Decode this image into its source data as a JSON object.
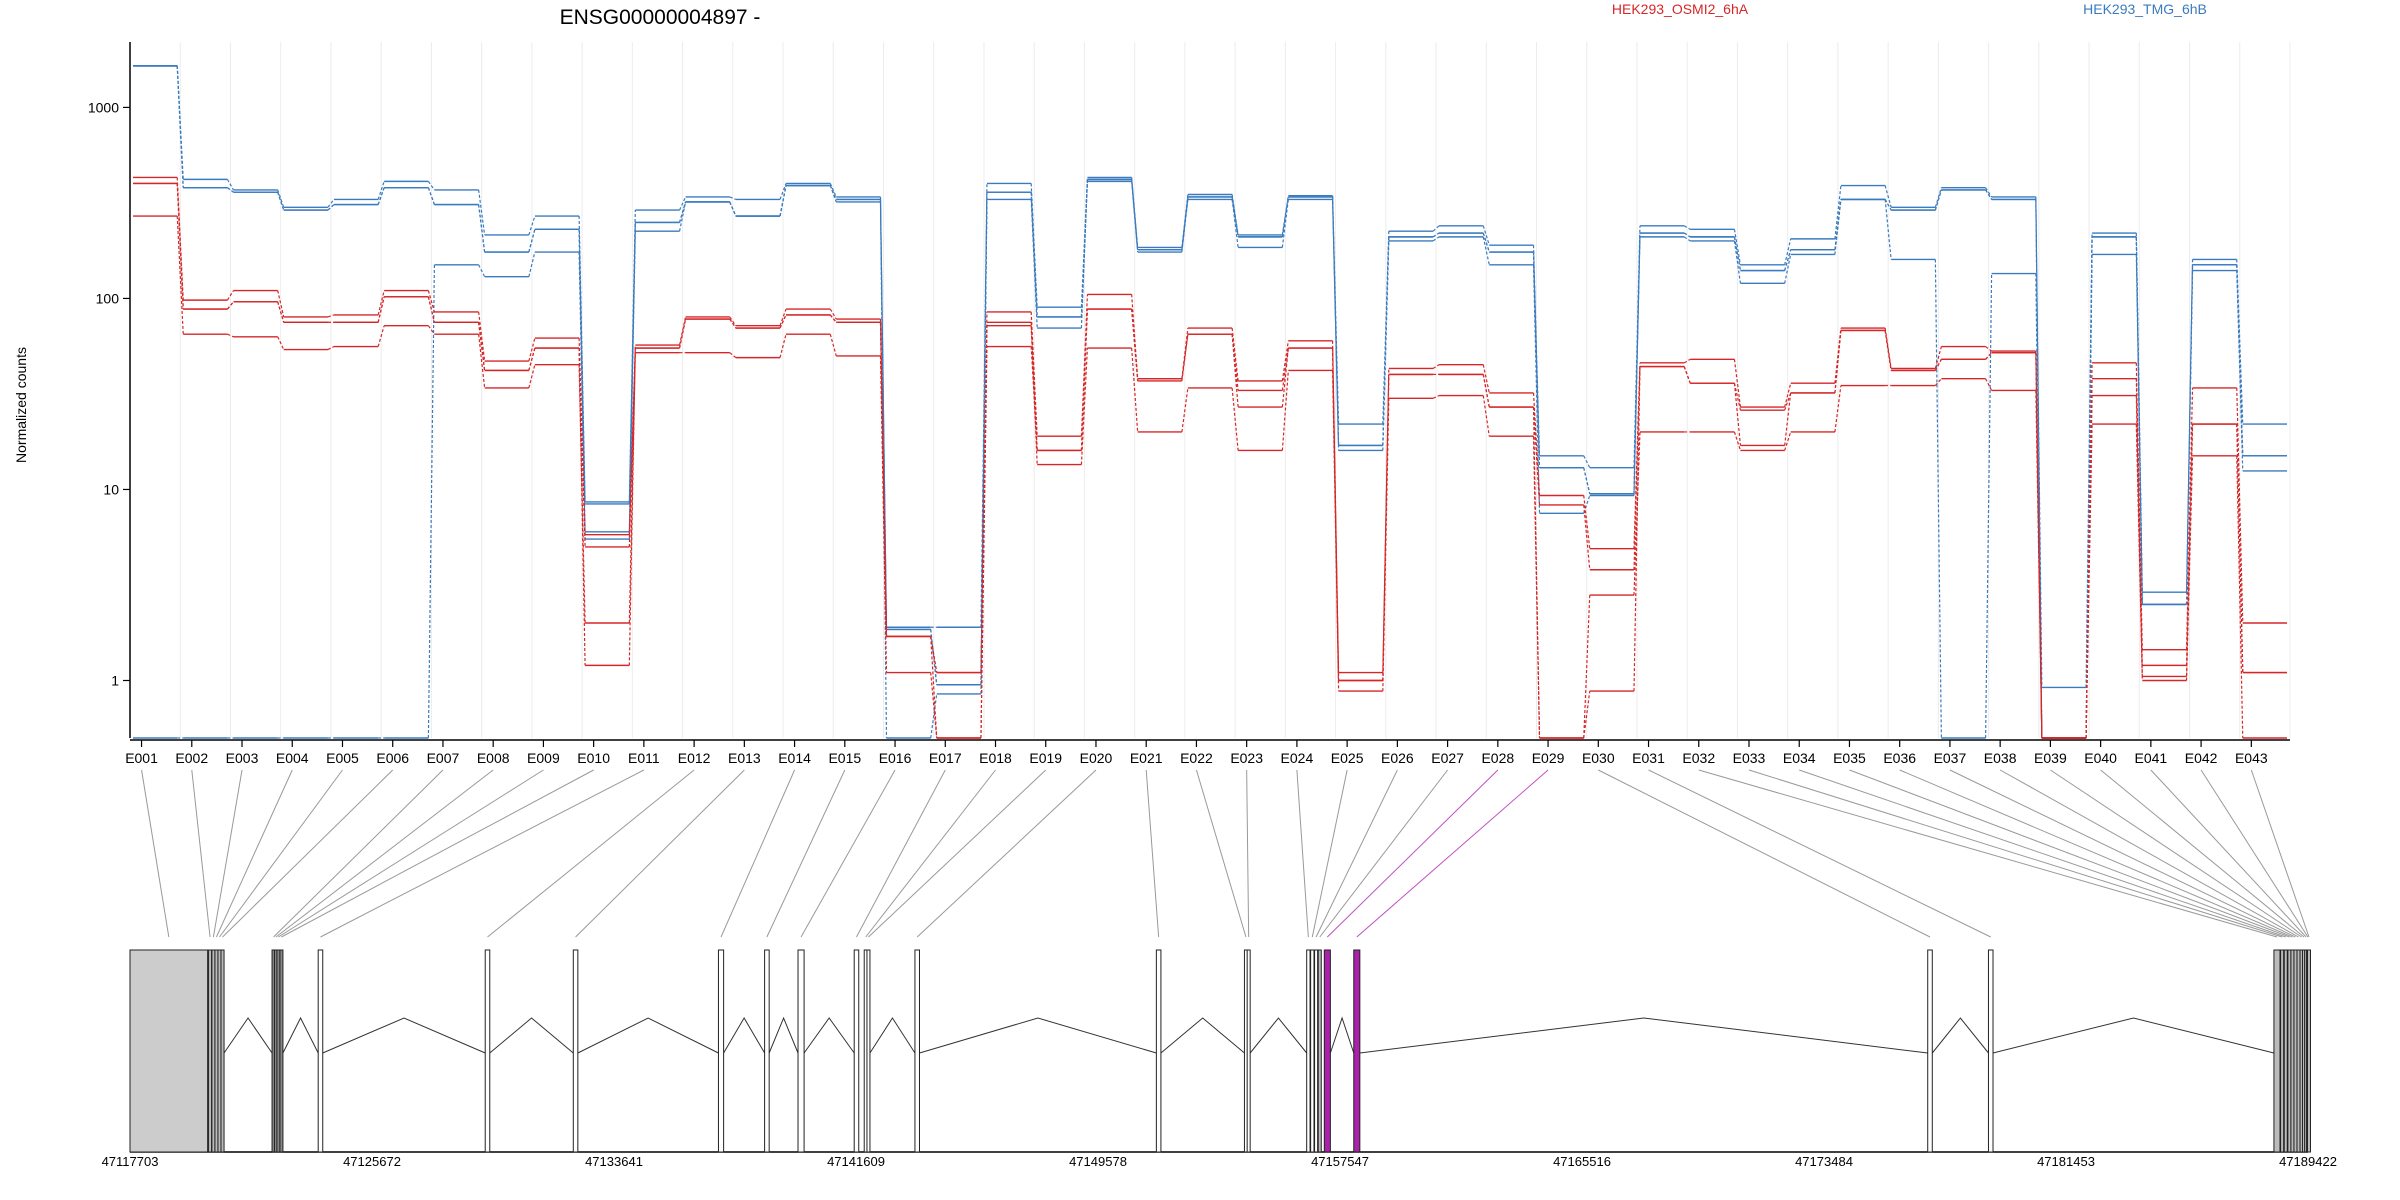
{
  "chart_data": {
    "type": "line",
    "title": "ENSG00000004897 -",
    "xlabel": "",
    "ylabel": "Normalized counts",
    "yscale": "log",
    "ylim": [
      0.5,
      2200
    ],
    "yticks": [
      1,
      10,
      100,
      1000
    ],
    "ytick_labels": [
      "1",
      "10",
      "100",
      "1000"
    ],
    "grid": "vertical, light",
    "legend": "top",
    "legend_entries": [
      {
        "label": "HEK293_OSMI2_6hA",
        "color": "#d62728"
      },
      {
        "label": "HEK293_TMG_6hB",
        "color": "#3a7bbf"
      }
    ],
    "categories": [
      "E001",
      "E002",
      "E003",
      "E004",
      "E005",
      "E006",
      "E007",
      "E008",
      "E009",
      "E010",
      "E011",
      "E012",
      "E013",
      "E014",
      "E015",
      "E016",
      "E017",
      "E018",
      "E019",
      "E020",
      "E021",
      "E022",
      "E023",
      "E024",
      "E025",
      "E026",
      "E027",
      "E028",
      "E029",
      "E030",
      "E031",
      "E032",
      "E033",
      "E034",
      "E035",
      "E036",
      "E037",
      "E038",
      "E039",
      "E040",
      "E041",
      "E042",
      "E043"
    ],
    "series": [
      {
        "group": "HEK293_TMG_6hB",
        "color": "#3a7bbf",
        "values": [
          1650,
          420,
          370,
          300,
          330,
          410,
          370,
          215,
          270,
          8.6,
          290,
          340,
          330,
          400,
          340,
          1.9,
          1.9,
          400,
          90,
          430,
          185,
          350,
          215,
          345,
          22,
          225,
          240,
          190,
          15,
          13,
          240,
          230,
          150,
          205,
          390,
          300,
          380,
          340,
          0.92,
          220,
          2.9,
          160,
          22
        ]
      },
      {
        "group": "HEK293_TMG_6hB",
        "color": "#3a7bbf",
        "values": [
          1650,
          380,
          360,
          290,
          310,
          380,
          310,
          175,
          230,
          6.0,
          250,
          320,
          270,
          390,
          330,
          1.85,
          0.95,
          360,
          80,
          420,
          180,
          340,
          210,
          340,
          17,
          210,
          220,
          175,
          13,
          9.5,
          220,
          210,
          140,
          180,
          330,
          290,
          370,
          330,
          0.5,
          210,
          2.5,
          150,
          15
        ]
      },
      {
        "group": "HEK293_TMG_6hB",
        "color": "#3a7bbf",
        "values": [
          1650,
          380,
          360,
          290,
          310,
          380,
          310,
          175,
          230,
          8.4,
          250,
          320,
          270,
          390,
          330,
          1.85,
          0.95,
          360,
          80,
          420,
          180,
          340,
          210,
          340,
          17,
          210,
          220,
          175,
          13,
          9.5,
          220,
          210,
          140,
          180,
          330,
          290,
          370,
          330,
          0.5,
          210,
          2.5,
          150,
          15
        ]
      },
      {
        "group": "HEK293_TMG_6hB",
        "color": "#3a7bbf",
        "values": [
          0.5,
          0.5,
          0.5,
          0.5,
          0.5,
          0.5,
          150,
          130,
          175,
          5.5,
          225,
          320,
          270,
          390,
          320,
          0.5,
          0.85,
          330,
          70,
          410,
          175,
          330,
          185,
          330,
          16,
          200,
          210,
          150,
          7.5,
          9.3,
          210,
          200,
          120,
          170,
          330,
          160,
          0.5,
          135,
          0.5,
          170,
          2.5,
          140,
          12.5
        ]
      },
      {
        "group": "HEK293_OSMI2_6hA",
        "color": "#d62728",
        "values": [
          430,
          98,
          110,
          80,
          82,
          110,
          85,
          47,
          62,
          5.8,
          57,
          80,
          72,
          88,
          78,
          1.7,
          1.1,
          85,
          19,
          105,
          38,
          70,
          37,
          60,
          1.1,
          43,
          45,
          32,
          9.3,
          4.9,
          46,
          48,
          27,
          36,
          70,
          43,
          56,
          53,
          0.5,
          46,
          1.45,
          34,
          2.0
        ]
      },
      {
        "group": "HEK293_OSMI2_6hA",
        "color": "#d62728",
        "values": [
          400,
          88,
          96,
          75,
          75,
          102,
          75,
          42,
          55,
          5.0,
          55,
          78,
          70,
          82,
          75,
          1.7,
          1.1,
          75,
          16,
          88,
          37,
          65,
          33,
          55,
          1.0,
          40,
          40,
          27,
          8.3,
          3.8,
          44,
          36,
          26,
          32,
          68,
          42,
          48,
          52,
          0.5,
          38,
          1.2,
          22,
          1.1
        ]
      },
      {
        "group": "HEK293_OSMI2_6hA",
        "color": "#d62728",
        "values": [
          270,
          65,
          63,
          54,
          56,
          72,
          65,
          34,
          45,
          2.0,
          52,
          52,
          49,
          65,
          50,
          1.1,
          0.5,
          72,
          13.5,
          55,
          20,
          34,
          16,
          42,
          0.88,
          30,
          31,
          19,
          0.5,
          2.8,
          20,
          20,
          16,
          20,
          35,
          35,
          38,
          33,
          0.5,
          31,
          1.0,
          15,
          0.5
        ]
      },
      {
        "group": "HEK293_OSMI2_6hA",
        "color": "#d62728",
        "values": [
          400,
          88,
          96,
          75,
          75,
          102,
          75,
          42,
          55,
          1.2,
          55,
          78,
          70,
          82,
          75,
          1.7,
          0.5,
          56,
          16,
          88,
          38,
          65,
          27,
          55,
          1.0,
          40,
          40,
          27,
          0.5,
          0.88,
          44,
          36,
          17,
          32,
          68,
          42,
          48,
          52,
          0.5,
          22,
          1.05,
          22,
          1.1
        ]
      }
    ]
  },
  "gene_model": {
    "coord_labels": [
      "47117703",
      "47125672",
      "47133641",
      "47141609",
      "47149578",
      "47157547",
      "47165516",
      "47173484",
      "47181453",
      "47189422"
    ],
    "coord_range": [
      47117703,
      47189422
    ],
    "exons": [
      {
        "id": "E001",
        "start": 47117703,
        "end": 47120260,
        "fill": "#cccccc"
      },
      {
        "id": "E002",
        "start": 47120290,
        "end": 47120380,
        "fill": "#bbbbbb"
      },
      {
        "id": "E003",
        "start": 47120400,
        "end": 47120480,
        "fill": "#bbbbbb"
      },
      {
        "id": "E004",
        "start": 47120500,
        "end": 47120580,
        "fill": "#bbbbbb"
      },
      {
        "id": "E005",
        "start": 47120600,
        "end": 47120680,
        "fill": "#bbbbbb"
      },
      {
        "id": "E006",
        "start": 47120700,
        "end": 47120800,
        "fill": "#bbbbbb"
      },
      {
        "id": "E007",
        "start": 47122380,
        "end": 47122440,
        "fill": "#888888"
      },
      {
        "id": "E008",
        "start": 47122460,
        "end": 47122520,
        "fill": "#888888"
      },
      {
        "id": "E009",
        "start": 47122540,
        "end": 47122610,
        "fill": "#888888"
      },
      {
        "id": "E010",
        "start": 47122640,
        "end": 47122700,
        "fill": "#888888"
      },
      {
        "id": "E011",
        "start": 47123900,
        "end": 47124050,
        "fill": "#ffffff"
      },
      {
        "id": "E012",
        "start": 47129400,
        "end": 47129550,
        "fill": "#ffffff"
      },
      {
        "id": "E013",
        "start": 47132300,
        "end": 47132450,
        "fill": "#ffffff"
      },
      {
        "id": "E014",
        "start": 47137080,
        "end": 47137250,
        "fill": "#ffffff"
      },
      {
        "id": "E015",
        "start": 47138600,
        "end": 47138750,
        "fill": "#ffffff"
      },
      {
        "id": "E016",
        "start": 47139700,
        "end": 47139900,
        "fill": "#ffffff"
      },
      {
        "id": "E017",
        "start": 47141550,
        "end": 47141700,
        "fill": "#ffffff"
      },
      {
        "id": "E018",
        "start": 47141880,
        "end": 47141950,
        "fill": "#ffffff"
      },
      {
        "id": "E019",
        "start": 47141970,
        "end": 47142060,
        "fill": "#ffffff"
      },
      {
        "id": "E020",
        "start": 47143550,
        "end": 47143700,
        "fill": "#ffffff"
      },
      {
        "id": "E021",
        "start": 47151500,
        "end": 47151650,
        "fill": "#ffffff"
      },
      {
        "id": "E022",
        "start": 47154400,
        "end": 47154470,
        "fill": "#ffffff"
      },
      {
        "id": "E023",
        "start": 47154490,
        "end": 47154560,
        "fill": "#ffffff"
      },
      {
        "id": "E024",
        "start": 47156450,
        "end": 47156560,
        "fill": "#ffffff"
      },
      {
        "id": "E025",
        "start": 47156580,
        "end": 47156690,
        "fill": "#ffffff"
      },
      {
        "id": "E026",
        "start": 47156710,
        "end": 47156810,
        "fill": "#ffffff"
      },
      {
        "id": "E027",
        "start": 47156830,
        "end": 47156930,
        "fill": "#bbbbbb"
      },
      {
        "id": "E028",
        "start": 47157030,
        "end": 47157230,
        "fill": "#aa22aa"
      },
      {
        "id": "E029",
        "start": 47158000,
        "end": 47158200,
        "fill": "#aa22aa"
      },
      {
        "id": "E030",
        "start": 47176900,
        "end": 47177050,
        "fill": "#ffffff"
      },
      {
        "id": "E031",
        "start": 47178900,
        "end": 47179050,
        "fill": "#ffffff"
      },
      {
        "id": "E032",
        "start": 47188300,
        "end": 47188500,
        "fill": "#bbbbbb"
      },
      {
        "id": "E033",
        "start": 47188520,
        "end": 47188620,
        "fill": "#bbbbbb"
      },
      {
        "id": "E034",
        "start": 47188640,
        "end": 47188740,
        "fill": "#bbbbbb"
      },
      {
        "id": "E035",
        "start": 47188760,
        "end": 47188840,
        "fill": "#bbbbbb"
      },
      {
        "id": "E036",
        "start": 47188860,
        "end": 47188940,
        "fill": "#bbbbbb"
      },
      {
        "id": "E037",
        "start": 47188960,
        "end": 47189040,
        "fill": "#bbbbbb"
      },
      {
        "id": "E038",
        "start": 47189060,
        "end": 47189140,
        "fill": "#bbbbbb"
      },
      {
        "id": "E039",
        "start": 47189160,
        "end": 47189220,
        "fill": "#bbbbbb"
      },
      {
        "id": "E040",
        "start": 47189240,
        "end": 47189300,
        "fill": "#bbbbbb"
      },
      {
        "id": "E041",
        "start": 47189310,
        "end": 47189360,
        "fill": "#bbbbbb"
      },
      {
        "id": "E042",
        "start": 47189370,
        "end": 47189400,
        "fill": "#bbbbbb"
      },
      {
        "id": "E043",
        "start": 47189405,
        "end": 47189422,
        "fill": "#bbbbbb"
      }
    ]
  }
}
